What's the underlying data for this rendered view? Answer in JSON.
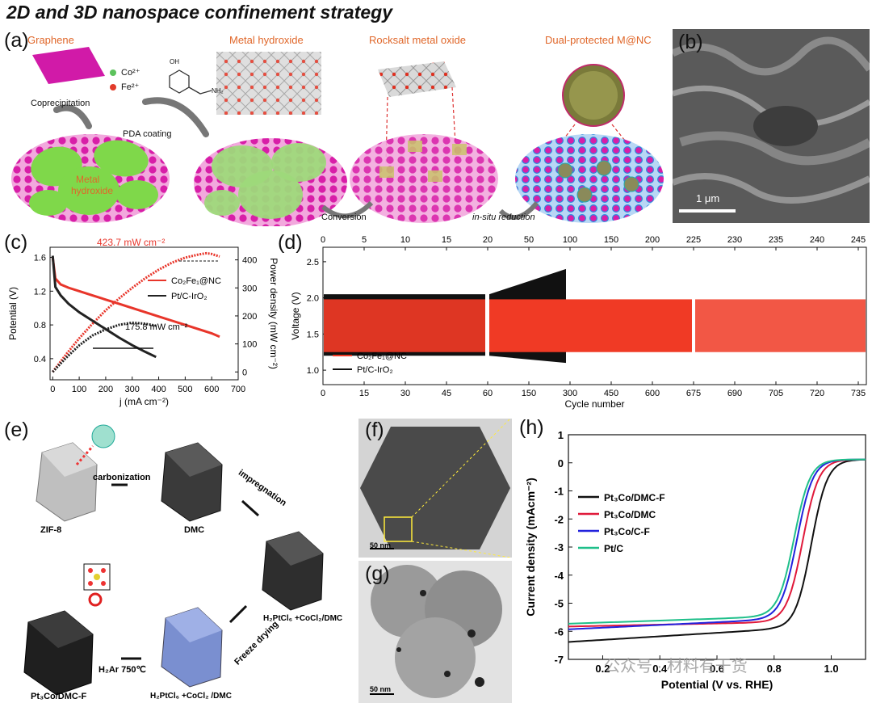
{
  "title": "2D and 3D nanospace confinement strategy",
  "panels": {
    "a": "(a)",
    "b": "(b)",
    "c": "(c)",
    "d": "(d)",
    "e": "(e)",
    "f": "(f)",
    "g": "(g)",
    "h": "(h)"
  },
  "panel_a": {
    "stage_titles": [
      "Graphene",
      "Metal hydroxide",
      "Rocksalt metal oxide",
      "Dual-protected M@NC"
    ],
    "ions": [
      "Co²⁺",
      "Fe²⁺"
    ],
    "steps": [
      "Coprecipitation",
      "PDA coating",
      "Conversion",
      "in-situ reduction"
    ],
    "hydroxide_label": [
      "Metal",
      "hydroxide"
    ],
    "nh2": "NH₂",
    "oh": "OH"
  },
  "panel_b": {
    "scale": "1 μm"
  },
  "panel_e": {
    "labels": [
      "ZIF-8",
      "DMC",
      "H₂PtCl₆ +CoCl₂/DMC",
      "H₂PtCl₆ +CoCl₂ /DMC",
      "Pt₃Co/DMC-F"
    ],
    "steps": [
      "carbonization",
      "impregnation",
      "Freeze drying",
      "H₂Ar 750℃"
    ]
  },
  "panel_f": {
    "scale": "50 nm"
  },
  "panel_g": {
    "scale": "50 nm"
  },
  "watermark": "公众号 · 材料有干货",
  "chart_data": [
    {
      "id": "c",
      "type": "line",
      "xlabel": "j (mA cm⁻²)",
      "ylabel": "Potential (V)",
      "y2label": "Power density (mW cm⁻²)",
      "xlim": [
        -10,
        700
      ],
      "ylim": [
        0.15,
        1.72
      ],
      "y2lim": [
        -28,
        445
      ],
      "xticks": [
        "0",
        "100",
        "200",
        "300",
        "400",
        "500",
        "600",
        "700"
      ],
      "yticks": [
        "0.4",
        "0.8",
        "1.2",
        "1.6"
      ],
      "y2ticks": [
        "0",
        "100",
        "200",
        "300",
        "400"
      ],
      "annotations": [
        "423.7 mW cm⁻²",
        "175.8 mW cm⁻²"
      ],
      "series": [
        {
          "name": "Co2Fe1@NC",
          "color": "#e8352a",
          "kind": "polarization",
          "x": [
            0,
            10,
            30,
            60,
            100,
            150,
            200,
            250,
            300,
            350,
            400,
            450,
            500,
            550,
            600,
            630
          ],
          "y": [
            1.6,
            1.35,
            1.28,
            1.24,
            1.2,
            1.15,
            1.1,
            1.05,
            1.0,
            0.95,
            0.9,
            0.85,
            0.8,
            0.75,
            0.7,
            0.66
          ]
        },
        {
          "name": "Co2Fe1@NC",
          "color": "#e8352a",
          "kind": "power",
          "x": [
            0,
            50,
            100,
            150,
            200,
            250,
            300,
            350,
            400,
            450,
            500,
            550,
            580,
            600,
            630
          ],
          "y": [
            0,
            62,
            120,
            172,
            220,
            262,
            300,
            335,
            365,
            390,
            408,
            419,
            423.7,
            421,
            412
          ]
        },
        {
          "name": "Pt/C-IrO2",
          "color": "#222222",
          "kind": "polarization",
          "x": [
            0,
            10,
            30,
            60,
            100,
            150,
            200,
            250,
            300,
            350,
            390
          ],
          "y": [
            1.62,
            1.25,
            1.15,
            1.05,
            0.95,
            0.85,
            0.75,
            0.65,
            0.56,
            0.48,
            0.42
          ]
        },
        {
          "name": "Pt/C-IrO2",
          "color": "#222222",
          "kind": "power",
          "x": [
            0,
            50,
            100,
            150,
            200,
            250,
            300,
            350,
            390
          ],
          "y": [
            0,
            50,
            95,
            130,
            152,
            168,
            175.8,
            172,
            165
          ]
        }
      ],
      "legend": [
        "Co₂Fe₁@NC",
        "Pt/C-IrO₂"
      ]
    },
    {
      "id": "d",
      "type": "line",
      "xlabel": "Cycle number",
      "ylabel": "Voltage (V)",
      "ylim": [
        0.8,
        2.7
      ],
      "yticks": [
        "1.0",
        "1.5",
        "2.0",
        "2.5"
      ],
      "top_ticks": [
        "0",
        "5",
        "10",
        "15",
        "20",
        "50",
        "100",
        "150",
        "200",
        "225",
        "230",
        "235",
        "240",
        "245"
      ],
      "bottom_ticks": [
        "0",
        "15",
        "30",
        "45",
        "60",
        "150",
        "300",
        "450",
        "600",
        "675",
        "690",
        "705",
        "720",
        "735"
      ],
      "series": [
        {
          "name": "Co2Fe1@NC",
          "color": "#f03a25",
          "charge_V": 1.98,
          "discharge_V": 1.25
        },
        {
          "name": "Pt/C-IrO2",
          "color": "#111111",
          "charge_V": 2.05,
          "discharge_V": 1.2,
          "end_charge_V": 2.4,
          "end_discharge_V": 1.1
        }
      ],
      "legend": [
        "Co₂Fe₁@NC",
        "Pt/C-IrO₂"
      ]
    },
    {
      "id": "h",
      "type": "line",
      "xlabel": "Potential (V vs. RHE)",
      "ylabel": "Current density (mAcm⁻²)",
      "xlim": [
        0.08,
        1.12
      ],
      "ylim": [
        -7,
        1
      ],
      "xticks": [
        "0.2",
        "0.4",
        "0.6",
        "0.8",
        "1.0"
      ],
      "yticks": [
        "1",
        "0",
        "-1",
        "-2",
        "-3",
        "-4",
        "-5",
        "-6",
        "-7"
      ],
      "legend": [
        "Pt₃Co/DMC-F",
        "Pt₃Co/DMC",
        "Pt₃Co/C-F",
        "Pt/C"
      ],
      "series": [
        {
          "name": "Pt3Co/DMC-F",
          "color": "#111111",
          "limit": -6.5,
          "plateau": -6.05,
          "half": 0.93,
          "width": 0.028
        },
        {
          "name": "Pt3Co/DMC",
          "color": "#e0193a",
          "limit": -5.95,
          "plateau": -5.8,
          "half": 0.9,
          "width": 0.028
        },
        {
          "name": "Pt3Co/C-F",
          "color": "#2222dd",
          "limit": -6.05,
          "plateau": -5.7,
          "half": 0.88,
          "width": 0.028
        },
        {
          "name": "Pt/C",
          "color": "#1fbf8a",
          "limit": -5.85,
          "plateau": -5.6,
          "half": 0.87,
          "width": 0.028
        }
      ]
    }
  ]
}
